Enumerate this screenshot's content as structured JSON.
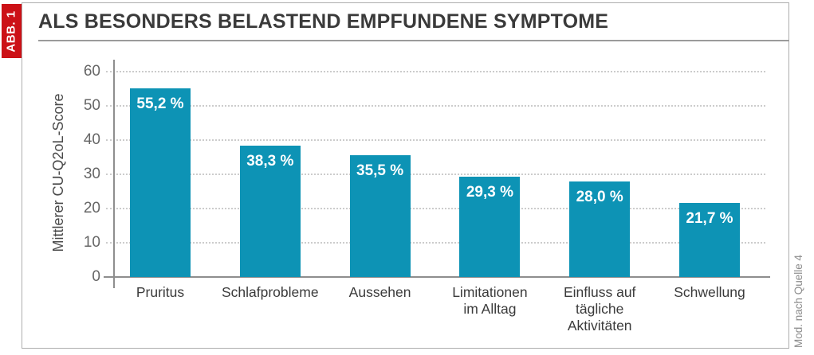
{
  "figure": {
    "badge_label": "ABB. 1",
    "title": "ALS BESONDERS BELASTEND EMPFUNDENE SYMPTOME",
    "source_note": "Mod. nach Quelle 4"
  },
  "chart_data": {
    "type": "bar",
    "title": "ALS BESONDERS BELASTEND EMPFUNDENE SYMPTOME",
    "categories": [
      "Pruritus",
      "Schlafprobleme",
      "Aussehen",
      "Limitationen im Alltag",
      "Einfluss auf tägliche Aktivitäten",
      "Schwellung"
    ],
    "category_lines": [
      [
        "Pruritus"
      ],
      [
        "Schlafprobleme"
      ],
      [
        "Aussehen"
      ],
      [
        "Limitationen",
        "im Alltag"
      ],
      [
        "Einfluss auf",
        "tägliche",
        "Aktivitäten"
      ],
      [
        "Schwellung"
      ]
    ],
    "values": [
      55.2,
      38.3,
      35.5,
      29.3,
      28.0,
      21.7
    ],
    "value_labels": [
      "55,2 %",
      "38,3 %",
      "35,5 %",
      "29,3 %",
      "28,0 %",
      "21,7 %"
    ],
    "xlabel": "",
    "ylabel": "Mittlerer CU-Q2oL-Score",
    "ylim": [
      0,
      60
    ],
    "yticks": [
      0,
      10,
      20,
      30,
      40,
      50,
      60
    ],
    "grid": "horizontal-dotted",
    "legend": "none"
  },
  "colors": {
    "bar_teal": "#0d93b5",
    "badge_red": "#cc1117",
    "title_text": "#3a3a3a",
    "axis_line": "#8e8e8e",
    "grid_line": "#cccccc",
    "tick_text": "#666666",
    "source_text": "#8c8c8c",
    "frame_border": "#adadad"
  }
}
